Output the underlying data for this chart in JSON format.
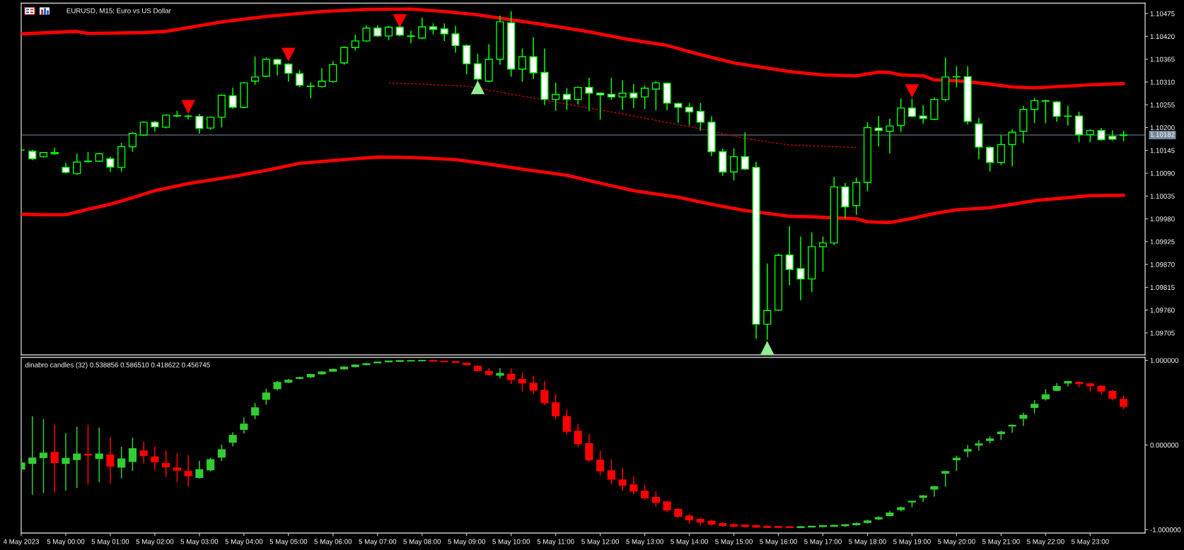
{
  "chart_data": [
    {
      "type": "candlestick",
      "title": "EURUSD, M15: Euro vs US Dollar",
      "color": "#00ff00",
      "x": [
        "2023-05-04T23:00",
        "2023-05-04T23:15",
        "2023-05-04T23:30",
        "2023-05-04T23:45",
        "2023-05-05T00:00",
        "2023-05-05T00:15",
        "2023-05-05T00:30",
        "2023-05-05T00:45",
        "2023-05-05T01:00",
        "2023-05-05T01:15",
        "2023-05-05T01:30",
        "2023-05-05T01:45",
        "2023-05-05T02:00",
        "2023-05-05T02:15",
        "2023-05-05T02:30",
        "2023-05-05T02:45",
        "2023-05-05T03:00",
        "2023-05-05T03:15",
        "2023-05-05T03:30",
        "2023-05-05T03:45",
        "2023-05-05T04:00",
        "2023-05-05T04:15",
        "2023-05-05T04:30",
        "2023-05-05T04:45",
        "2023-05-05T05:00",
        "2023-05-05T05:15",
        "2023-05-05T05:30",
        "2023-05-05T05:45",
        "2023-05-05T06:00",
        "2023-05-05T06:15",
        "2023-05-05T06:30",
        "2023-05-05T06:45",
        "2023-05-05T07:00",
        "2023-05-05T07:15",
        "2023-05-05T07:30",
        "2023-05-05T07:45",
        "2023-05-05T08:00",
        "2023-05-05T08:15",
        "2023-05-05T08:30",
        "2023-05-05T08:45",
        "2023-05-05T09:00",
        "2023-05-05T09:15",
        "2023-05-05T09:30",
        "2023-05-05T09:45",
        "2023-05-05T10:00",
        "2023-05-05T10:15",
        "2023-05-05T10:30",
        "2023-05-05T10:45",
        "2023-05-05T11:00",
        "2023-05-05T11:15",
        "2023-05-05T11:30",
        "2023-05-05T11:45",
        "2023-05-05T12:00",
        "2023-05-05T12:15",
        "2023-05-05T12:30",
        "2023-05-05T12:45",
        "2023-05-05T13:00",
        "2023-05-05T13:15",
        "2023-05-05T13:30",
        "2023-05-05T13:45",
        "2023-05-05T14:00",
        "2023-05-05T14:15",
        "2023-05-05T14:30",
        "2023-05-05T14:45",
        "2023-05-05T15:00",
        "2023-05-05T15:15",
        "2023-05-05T15:30",
        "2023-05-05T15:45",
        "2023-05-05T16:00",
        "2023-05-05T16:15",
        "2023-05-05T16:30",
        "2023-05-05T16:45",
        "2023-05-05T17:00",
        "2023-05-05T17:15",
        "2023-05-05T17:30",
        "2023-05-05T17:45",
        "2023-05-05T18:00",
        "2023-05-05T18:15",
        "2023-05-05T18:30",
        "2023-05-05T18:45",
        "2023-05-05T19:00",
        "2023-05-05T19:15",
        "2023-05-05T19:30",
        "2023-05-05T19:45",
        "2023-05-05T20:00",
        "2023-05-05T20:15",
        "2023-05-05T20:30",
        "2023-05-05T20:45",
        "2023-05-05T21:00",
        "2023-05-05T21:15",
        "2023-05-05T21:30",
        "2023-05-05T21:45",
        "2023-05-05T22:00",
        "2023-05-05T22:15",
        "2023-05-05T22:30",
        "2023-05-05T22:45",
        "2023-05-05T23:00",
        "2023-05-05T23:15",
        "2023-05-05T23:30",
        "2023-05-05T23:45"
      ],
      "ohlc": [
        [
          1.10146,
          1.10148,
          1.10144,
          1.10146
        ],
        [
          1.10143,
          1.10145,
          1.10123,
          1.10125
        ],
        [
          1.1013,
          1.1014,
          1.10129,
          1.1014
        ],
        [
          1.10137,
          1.1015,
          1.10136,
          1.1014
        ],
        [
          1.10104,
          1.10114,
          1.1009,
          1.10092
        ],
        [
          1.10089,
          1.10136,
          1.10087,
          1.10117
        ],
        [
          1.10118,
          1.1014,
          1.10117,
          1.10119
        ],
        [
          1.10119,
          1.10138,
          1.10118,
          1.10137
        ],
        [
          1.10125,
          1.10129,
          1.10094,
          1.10105
        ],
        [
          1.10104,
          1.10162,
          1.10095,
          1.10154
        ],
        [
          1.10154,
          1.10188,
          1.10143,
          1.10186
        ],
        [
          1.10182,
          1.10214,
          1.10181,
          1.10213
        ],
        [
          1.10213,
          1.10215,
          1.10192,
          1.10202
        ],
        [
          1.10201,
          1.10231,
          1.10199,
          1.1023
        ],
        [
          1.10228,
          1.10239,
          1.10226,
          1.10229
        ],
        [
          1.10227,
          1.1023,
          1.10221,
          1.10228
        ],
        [
          1.10227,
          1.10232,
          1.10187,
          1.10198
        ],
        [
          1.10199,
          1.10226,
          1.10196,
          1.10225
        ],
        [
          1.10225,
          1.10279,
          1.10202,
          1.10278
        ],
        [
          1.10277,
          1.10295,
          1.10247,
          1.10249
        ],
        [
          1.10249,
          1.10309,
          1.10248,
          1.10308
        ],
        [
          1.10312,
          1.1037,
          1.10305,
          1.10322
        ],
        [
          1.10324,
          1.10368,
          1.10323,
          1.10365
        ],
        [
          1.10364,
          1.10365,
          1.10327,
          1.10353
        ],
        [
          1.10353,
          1.10354,
          1.10312,
          1.10331
        ],
        [
          1.1033,
          1.10337,
          1.10299,
          1.10302
        ],
        [
          1.103,
          1.10308,
          1.10272,
          1.10299
        ],
        [
          1.10299,
          1.10342,
          1.10298,
          1.10312
        ],
        [
          1.10311,
          1.10359,
          1.10309,
          1.10352
        ],
        [
          1.10356,
          1.10395,
          1.10353,
          1.10393
        ],
        [
          1.10393,
          1.10423,
          1.10387,
          1.10409
        ],
        [
          1.10409,
          1.10445,
          1.10408,
          1.1044
        ],
        [
          1.1044,
          1.10445,
          1.1042,
          1.10421
        ],
        [
          1.10421,
          1.10444,
          1.10412,
          1.10442
        ],
        [
          1.10442,
          1.10444,
          1.10421,
          1.10423
        ],
        [
          1.10421,
          1.10432,
          1.10405,
          1.1042
        ],
        [
          1.10416,
          1.10464,
          1.10415,
          1.10443
        ],
        [
          1.10443,
          1.1045,
          1.10426,
          1.10437
        ],
        [
          1.10438,
          1.1045,
          1.1041,
          1.10426
        ],
        [
          1.10426,
          1.10444,
          1.10382,
          1.10398
        ],
        [
          1.10398,
          1.10399,
          1.1033,
          1.10354
        ],
        [
          1.10354,
          1.10377,
          1.10315,
          1.10317
        ],
        [
          1.10312,
          1.104,
          1.10311,
          1.10365
        ],
        [
          1.10365,
          1.10469,
          1.10353,
          1.10455
        ],
        [
          1.10453,
          1.10479,
          1.10324,
          1.10341
        ],
        [
          1.10341,
          1.10389,
          1.10312,
          1.10371
        ],
        [
          1.10371,
          1.10417,
          1.10318,
          1.10332
        ],
        [
          1.10333,
          1.10389,
          1.10256,
          1.10268
        ],
        [
          1.10268,
          1.10307,
          1.10242,
          1.1028
        ],
        [
          1.1028,
          1.10294,
          1.10244,
          1.10268
        ],
        [
          1.10268,
          1.10298,
          1.10257,
          1.10297
        ],
        [
          1.10297,
          1.10319,
          1.10241,
          1.10283
        ],
        [
          1.10283,
          1.10284,
          1.10221,
          1.10279
        ],
        [
          1.1028,
          1.10319,
          1.10268,
          1.10274
        ],
        [
          1.10274,
          1.10313,
          1.10244,
          1.10283
        ],
        [
          1.10283,
          1.10304,
          1.10248,
          1.10272
        ],
        [
          1.10274,
          1.103,
          1.10246,
          1.10295
        ],
        [
          1.10293,
          1.10311,
          1.10243,
          1.10308
        ],
        [
          1.10307,
          1.10308,
          1.10243,
          1.10259
        ],
        [
          1.10258,
          1.10259,
          1.10213,
          1.10249
        ],
        [
          1.10249,
          1.10258,
          1.10207,
          1.10238
        ],
        [
          1.10239,
          1.10258,
          1.10193,
          1.10213
        ],
        [
          1.10213,
          1.10226,
          1.10133,
          1.10142
        ],
        [
          1.10142,
          1.10148,
          1.10085,
          1.10093
        ],
        [
          1.10093,
          1.10149,
          1.10074,
          1.1013
        ],
        [
          1.1013,
          1.10187,
          1.10099,
          1.101
        ],
        [
          1.10104,
          1.10116,
          1.09692,
          1.09726
        ],
        [
          1.09726,
          1.09871,
          1.0969,
          1.09759
        ],
        [
          1.0976,
          1.09895,
          1.09759,
          1.09892
        ],
        [
          1.09893,
          1.09961,
          1.09821,
          1.09858
        ],
        [
          1.0986,
          1.09936,
          1.09785,
          1.09835
        ],
        [
          1.09835,
          1.09946,
          1.09805,
          1.09913
        ],
        [
          1.09913,
          1.09936,
          1.09854,
          1.09922
        ],
        [
          1.09922,
          1.1008,
          1.09918,
          1.10057
        ],
        [
          1.10057,
          1.10065,
          1.09983,
          1.10009
        ],
        [
          1.10012,
          1.10078,
          1.09991,
          1.10068
        ],
        [
          1.10068,
          1.10212,
          1.10048,
          1.102
        ],
        [
          1.10199,
          1.10227,
          1.10156,
          1.10193
        ],
        [
          1.10191,
          1.1022,
          1.10139,
          1.10204
        ],
        [
          1.10205,
          1.10269,
          1.10191,
          1.10247
        ],
        [
          1.10247,
          1.10268,
          1.10226,
          1.10227
        ],
        [
          1.10228,
          1.10253,
          1.10211,
          1.10222
        ],
        [
          1.1022,
          1.10271,
          1.10219,
          1.10268
        ],
        [
          1.10268,
          1.10368,
          1.10264,
          1.10322
        ],
        [
          1.10322,
          1.10347,
          1.10298,
          1.10323
        ],
        [
          1.10323,
          1.10347,
          1.10209,
          1.10215
        ],
        [
          1.10209,
          1.10222,
          1.10125,
          1.10153
        ],
        [
          1.10152,
          1.10154,
          1.10095,
          1.10116
        ],
        [
          1.10116,
          1.10181,
          1.10111,
          1.10159
        ],
        [
          1.10159,
          1.10195,
          1.10108,
          1.10189
        ],
        [
          1.10191,
          1.10251,
          1.10164,
          1.10244
        ],
        [
          1.10244,
          1.1027,
          1.10212,
          1.10265
        ],
        [
          1.10264,
          1.10266,
          1.10212,
          1.10265
        ],
        [
          1.10262,
          1.10263,
          1.10216,
          1.10227
        ],
        [
          1.10228,
          1.10251,
          1.10206,
          1.10227
        ],
        [
          1.10228,
          1.10237,
          1.10166,
          1.10183
        ],
        [
          1.10183,
          1.10195,
          1.10166,
          1.10193
        ],
        [
          1.10193,
          1.10198,
          1.1017,
          1.10171
        ],
        [
          1.10179,
          1.10192,
          1.1017,
          1.10172
        ],
        [
          1.10181,
          1.10191,
          1.10168,
          1.10182
        ]
      ],
      "colors": [
        "#00ff00",
        "#ffffff",
        "#000000",
        "#000000",
        "#ffffff",
        "#000000",
        "#000000",
        "#000000",
        "#ffffff",
        "#000000",
        "#000000",
        "#000000",
        "#ffffff",
        "#000000",
        "#000000",
        "#000000",
        "#ffffff",
        "#000000",
        "#000000",
        "#ffffff",
        "#000000",
        "#000000",
        "#000000",
        "#ffffff",
        "#ffffff",
        "#ffffff",
        "#ffffff",
        "#000000",
        "#000000",
        "#000000",
        "#000000",
        "#000000",
        "#ffffff",
        "#000000",
        "#ffffff",
        "#ffffff",
        "#000000",
        "#ffffff",
        "#ffffff",
        "#ffffff",
        "#ffffff",
        "#ffffff",
        "#000000",
        "#000000",
        "#ffffff",
        "#000000",
        "#ffffff",
        "#ffffff",
        "#000000",
        "#ffffff",
        "#000000",
        "#ffffff",
        "#ffffff",
        "#ffffff",
        "#000000",
        "#ffffff",
        "#000000",
        "#000000",
        "#ffffff",
        "#ffffff",
        "#ffffff",
        "#ffffff",
        "#ffffff",
        "#ffffff",
        "#000000",
        "#ffffff",
        "#ffffff",
        "#000000",
        "#000000",
        "#ffffff",
        "#ffffff",
        "#000000",
        "#000000",
        "#000000",
        "#ffffff",
        "#000000",
        "#000000",
        "#ffffff",
        "#000000",
        "#000000",
        "#ffffff",
        "#ffffff",
        "#000000",
        "#000000",
        "#000000",
        "#ffffff",
        "#ffffff",
        "#ffffff",
        "#000000",
        "#000000",
        "#000000",
        "#000000",
        "#000000",
        "#ffffff",
        "#ffffff",
        "#ffffff",
        "#000000",
        "#ffffff",
        "#ffffff",
        "#000000"
      ],
      "series": [
        {
          "type": "line",
          "color": "#ff0000",
          "line_style": "solid",
          "x": [
            "2023-05-04T23:00",
            "2023-05-05T00:15",
            "2023-05-05T00:30",
            "2023-05-05T01:45",
            "2023-05-05T02:15",
            "2023-05-05T03:30",
            "2023-05-05T04:30",
            "2023-05-05T05:45",
            "2023-05-05T06:45",
            "2023-05-05T07:45",
            "2023-05-05T08:30",
            "2023-05-05T09:15",
            "2023-05-05T10:00",
            "2023-05-05T11:00",
            "2023-05-05T11:45",
            "2023-05-05T12:30",
            "2023-05-05T13:30",
            "2023-05-05T14:15",
            "2023-05-05T15:00",
            "2023-05-05T16:15",
            "2023-05-05T17:00",
            "2023-05-05T17:45",
            "2023-05-05T18:15",
            "2023-05-05T18:30",
            "2023-05-05T18:45",
            "2023-05-05T19:15",
            "2023-05-05T19:30",
            "2023-05-05T20:00",
            "2023-05-05T20:45",
            "2023-05-05T21:15",
            "2023-05-05T21:45",
            "2023-05-05T22:30",
            "2023-05-05T23:00",
            "2023-05-05T23:45"
          ],
          "values": [
            1.10426,
            1.10432,
            1.10427,
            1.10429,
            1.10432,
            1.10455,
            1.10468,
            1.1048,
            1.10485,
            1.10486,
            1.1048,
            1.10472,
            1.1046,
            1.10444,
            1.10431,
            1.10415,
            1.10398,
            1.10376,
            1.10356,
            1.10335,
            1.10327,
            1.10325,
            1.10334,
            1.10333,
            1.10327,
            1.10325,
            1.10315,
            1.10313,
            1.10305,
            1.10298,
            1.10296,
            1.103,
            1.10303,
            1.10306
          ]
        },
        {
          "type": "line",
          "color": "#ff0000",
          "line_style": "solid",
          "x": [
            "2023-05-04T23:00",
            "2023-05-04T23:30",
            "2023-05-05T00:00",
            "2023-05-05T00:30",
            "2023-05-05T01:00",
            "2023-05-05T01:30",
            "2023-05-05T02:00",
            "2023-05-05T02:45",
            "2023-05-05T03:45",
            "2023-05-05T04:30",
            "2023-05-05T05:15",
            "2023-05-05T06:15",
            "2023-05-05T07:00",
            "2023-05-05T07:45",
            "2023-05-05T08:45",
            "2023-05-05T09:30",
            "2023-05-05T10:15",
            "2023-05-05T11:15",
            "2023-05-05T12:00",
            "2023-05-05T12:45",
            "2023-05-05T13:45",
            "2023-05-05T14:30",
            "2023-05-05T15:15",
            "2023-05-05T16:15",
            "2023-05-05T16:45",
            "2023-05-05T17:45",
            "2023-05-05T18:00",
            "2023-05-05T18:30",
            "2023-05-05T19:00",
            "2023-05-05T19:30",
            "2023-05-05T20:00",
            "2023-05-05T20:45",
            "2023-05-05T21:15",
            "2023-05-05T21:45",
            "2023-05-05T22:30",
            "2023-05-05T23:00",
            "2023-05-05T23:45"
          ],
          "values": [
            1.09991,
            1.0999,
            1.0999,
            1.10003,
            1.10015,
            1.10031,
            1.10048,
            1.10065,
            1.10082,
            1.10097,
            1.10114,
            1.10123,
            1.10129,
            1.10128,
            1.10123,
            1.10112,
            1.101,
            1.10085,
            1.10066,
            1.10048,
            1.10032,
            1.10015,
            1.1,
            1.09986,
            1.09985,
            1.0998,
            1.09973,
            1.09971,
            1.09981,
            1.09993,
            1.10002,
            1.10007,
            1.10015,
            1.10024,
            1.10031,
            1.10036,
            1.10037
          ]
        },
        {
          "type": "line",
          "color": "#d40000",
          "line_style": "dashed",
          "x": [
            "2023-05-05T07:15",
            "2023-05-05T09:00",
            "2023-05-05T10:30",
            "2023-05-05T12:30",
            "2023-05-05T14:15",
            "2023-05-05T15:15",
            "2023-05-05T16:15",
            "2023-05-05T17:45"
          ],
          "values": [
            1.10308,
            1.103,
            1.10271,
            1.10233,
            1.10197,
            1.10174,
            1.10158,
            1.10152
          ]
        },
        {
          "type": "scatter",
          "color": "#ff0000",
          "marker": "triangle",
          "x": [
            "2023-05-05T02:45",
            "2023-05-05T05:00",
            "2023-05-05T07:30",
            "2023-05-05T19:00"
          ],
          "values": [
            1.1025,
            1.10376,
            1.10457,
            1.10288
          ]
        },
        {
          "type": "scatter",
          "color": "#90ee90",
          "marker": "triangle",
          "x": [
            "2023-05-05T09:15",
            "2023-05-05T15:45"
          ],
          "values": [
            1.10297,
            1.09669
          ]
        }
      ],
      "xlim": [
        "2023-05-04T23:00",
        "2023-05-06T00:14"
      ],
      "ylim": [
        1.09652,
        1.105
      ],
      "yticks": [
        1.10475,
        {
          "value": 1.1042,
          "label": "1.10420"
        },
        1.10365,
        {
          "value": 1.1031,
          "label": "1.10310"
        },
        1.10255,
        {
          "value": 1.102,
          "label": "1.10200"
        },
        1.10145,
        {
          "value": 1.1009,
          "label": "1.10090"
        },
        1.10035,
        {
          "value": 1.0998,
          "label": "1.09980"
        },
        1.09925,
        {
          "value": 1.0987,
          "label": "1.09870"
        },
        1.09815,
        {
          "value": 1.0976,
          "label": "1.09760"
        },
        1.09705
      ],
      "tick_labels": "y",
      "ref_lines": [
        {
          "axis": "y",
          "value": 1.10182,
          "label": "1.10182",
          "color": "#778899"
        }
      ]
    },
    {
      "type": "candlestick",
      "title": "dinabro candles (32) 0.538856 0.586510 0.418622 0.456745",
      "x": [
        "2023-05-04T23:00",
        "2023-05-04T23:15",
        "2023-05-04T23:30",
        "2023-05-04T23:45",
        "2023-05-05T00:00",
        "2023-05-05T00:15",
        "2023-05-05T00:30",
        "2023-05-05T00:45",
        "2023-05-05T01:00",
        "2023-05-05T01:15",
        "2023-05-05T01:30",
        "2023-05-05T01:45",
        "2023-05-05T02:00",
        "2023-05-05T02:15",
        "2023-05-05T02:30",
        "2023-05-05T02:45",
        "2023-05-05T03:00",
        "2023-05-05T03:15",
        "2023-05-05T03:30",
        "2023-05-05T03:45",
        "2023-05-05T04:00",
        "2023-05-05T04:15",
        "2023-05-05T04:30",
        "2023-05-05T04:45",
        "2023-05-05T05:00",
        "2023-05-05T05:15",
        "2023-05-05T05:30",
        "2023-05-05T05:45",
        "2023-05-05T06:00",
        "2023-05-05T06:15",
        "2023-05-05T06:30",
        "2023-05-05T06:45",
        "2023-05-05T07:00",
        "2023-05-05T07:15",
        "2023-05-05T07:30",
        "2023-05-05T07:45",
        "2023-05-05T08:00",
        "2023-05-05T08:15",
        "2023-05-05T08:30",
        "2023-05-05T08:45",
        "2023-05-05T09:00",
        "2023-05-05T09:15",
        "2023-05-05T09:30",
        "2023-05-05T09:45",
        "2023-05-05T10:00",
        "2023-05-05T10:15",
        "2023-05-05T10:30",
        "2023-05-05T10:45",
        "2023-05-05T11:00",
        "2023-05-05T11:15",
        "2023-05-05T11:30",
        "2023-05-05T11:45",
        "2023-05-05T12:00",
        "2023-05-05T12:15",
        "2023-05-05T12:30",
        "2023-05-05T12:45",
        "2023-05-05T13:00",
        "2023-05-05T13:15",
        "2023-05-05T13:30",
        "2023-05-05T13:45",
        "2023-05-05T14:00",
        "2023-05-05T14:15",
        "2023-05-05T14:30",
        "2023-05-05T14:45",
        "2023-05-05T15:00",
        "2023-05-05T15:15",
        "2023-05-05T15:30",
        "2023-05-05T15:45",
        "2023-05-05T16:00",
        "2023-05-05T16:15",
        "2023-05-05T16:30",
        "2023-05-05T16:45",
        "2023-05-05T17:00",
        "2023-05-05T17:15",
        "2023-05-05T17:30",
        "2023-05-05T17:45",
        "2023-05-05T18:00",
        "2023-05-05T18:15",
        "2023-05-05T18:30",
        "2023-05-05T18:45",
        "2023-05-05T19:00",
        "2023-05-05T19:15",
        "2023-05-05T19:30",
        "2023-05-05T19:45",
        "2023-05-05T20:00",
        "2023-05-05T20:15",
        "2023-05-05T20:30",
        "2023-05-05T20:45",
        "2023-05-05T21:00",
        "2023-05-05T21:15",
        "2023-05-05T21:30",
        "2023-05-05T21:45",
        "2023-05-05T22:00",
        "2023-05-05T22:15",
        "2023-05-05T22:30",
        "2023-05-05T22:45",
        "2023-05-05T23:00",
        "2023-05-05T23:15",
        "2023-05-05T23:30",
        "2023-05-05T23:45"
      ],
      "ohlc": [
        [
          -0.284,
          -0.204,
          -0.293,
          -0.213
        ],
        [
          -0.217,
          0.341,
          -0.588,
          -0.155
        ],
        [
          -0.15,
          0.305,
          -0.566,
          -0.097
        ],
        [
          -0.088,
          0.238,
          -0.557,
          -0.208
        ],
        [
          -0.217,
          0.14,
          -0.539,
          -0.159
        ],
        [
          -0.173,
          0.216,
          -0.508,
          -0.106
        ],
        [
          -0.11,
          0.238,
          -0.467,
          -0.119
        ],
        [
          -0.159,
          0.207,
          -0.441,
          -0.106
        ],
        [
          -0.119,
          0.095,
          -0.458,
          -0.249
        ],
        [
          -0.262,
          -0.021,
          -0.396,
          -0.164
        ],
        [
          -0.195,
          0.086,
          -0.307,
          -0.043
        ],
        [
          -0.07,
          0.037,
          -0.218,
          -0.124
        ],
        [
          -0.142,
          -0.017,
          -0.298,
          -0.2
        ],
        [
          -0.218,
          -0.061,
          -0.378,
          -0.258
        ],
        [
          -0.271,
          -0.097,
          -0.441,
          -0.298
        ],
        [
          -0.311,
          -0.119,
          -0.49,
          -0.365
        ],
        [
          -0.383,
          -0.186,
          -0.396,
          -0.293
        ],
        [
          -0.293,
          -0.15,
          -0.311,
          -0.173
        ],
        [
          -0.142,
          0.006,
          -0.191,
          -0.057
        ],
        [
          0.033,
          0.153,
          -0.017,
          0.113
        ],
        [
          0.184,
          0.327,
          0.135,
          0.247
        ],
        [
          0.354,
          0.497,
          0.305,
          0.439
        ],
        [
          0.539,
          0.666,
          0.475,
          0.613
        ],
        [
          0.666,
          0.756,
          0.644,
          0.738
        ],
        [
          0.742,
          0.782,
          0.733,
          0.765
        ],
        [
          0.787,
          0.805,
          0.774,
          0.796
        ],
        [
          0.805,
          0.841,
          0.791,
          0.832
        ],
        [
          0.841,
          0.872,
          0.832,
          0.863
        ],
        [
          0.872,
          0.903,
          0.863,
          0.894
        ],
        [
          0.899,
          0.93,
          0.89,
          0.921
        ],
        [
          0.925,
          0.952,
          0.916,
          0.943
        ],
        [
          0.948,
          0.97,
          0.939,
          0.961
        ],
        [
          0.97,
          0.983,
          0.966,
          0.979
        ],
        [
          0.983,
          0.997,
          0.979,
          0.992
        ],
        [
          0.988,
          0.999,
          0.983,
          0.997
        ],
        [
          0.992,
          0.999,
          0.99,
          0.997
        ],
        [
          0.994,
          0.999,
          0.992,
          0.998
        ],
        [
          0.998,
          0.999,
          0.988,
          0.99
        ],
        [
          0.988,
          0.99,
          0.981,
          0.983
        ],
        [
          0.983,
          0.985,
          0.972,
          0.975
        ],
        [
          0.966,
          0.97,
          0.939,
          0.948
        ],
        [
          0.93,
          0.943,
          0.868,
          0.881
        ],
        [
          0.868,
          0.908,
          0.823,
          0.836
        ],
        [
          0.823,
          0.908,
          0.787,
          0.845
        ],
        [
          0.836,
          0.908,
          0.72,
          0.774
        ],
        [
          0.774,
          0.854,
          0.631,
          0.733
        ],
        [
          0.729,
          0.818,
          0.6,
          0.649
        ],
        [
          0.644,
          0.756,
          0.47,
          0.501
        ],
        [
          0.497,
          0.6,
          0.309,
          0.345
        ],
        [
          0.336,
          0.417,
          0.126,
          0.162
        ],
        [
          0.162,
          0.251,
          -0.025,
          0.015
        ],
        [
          0.015,
          0.131,
          -0.2,
          -0.177
        ],
        [
          -0.179,
          -0.067,
          -0.359,
          -0.305
        ],
        [
          -0.305,
          -0.17,
          -0.462,
          -0.404
        ],
        [
          -0.413,
          -0.269,
          -0.538,
          -0.475
        ],
        [
          -0.471,
          -0.372,
          -0.583,
          -0.543
        ],
        [
          -0.547,
          -0.471,
          -0.65,
          -0.623
        ],
        [
          -0.619,
          -0.547,
          -0.726,
          -0.677
        ],
        [
          -0.673,
          -0.664,
          -0.794,
          -0.767
        ],
        [
          -0.762,
          -0.744,
          -0.861,
          -0.843
        ],
        [
          -0.839,
          -0.816,
          -0.928,
          -0.883
        ],
        [
          -0.879,
          -0.861,
          -0.951,
          -0.91
        ],
        [
          -0.901,
          -0.883,
          -0.955,
          -0.933
        ],
        [
          -0.928,
          -0.91,
          -0.969,
          -0.951
        ],
        [
          -0.942,
          -0.928,
          -0.973,
          -0.96
        ],
        [
          -0.946,
          -0.937,
          -0.973,
          -0.964
        ],
        [
          -0.951,
          -0.946,
          -0.978,
          -0.969
        ],
        [
          -0.96,
          -0.955,
          -0.978,
          -0.973
        ],
        [
          -0.964,
          -0.96,
          -0.978,
          -0.973
        ],
        [
          -0.966,
          -0.962,
          -0.98,
          -0.975
        ],
        [
          -0.975,
          -0.962,
          -0.978,
          -0.966
        ],
        [
          -0.969,
          -0.955,
          -0.973,
          -0.96
        ],
        [
          -0.964,
          -0.946,
          -0.969,
          -0.951
        ],
        [
          -0.962,
          -0.944,
          -0.966,
          -0.95
        ],
        [
          -0.955,
          -0.933,
          -0.964,
          -0.942
        ],
        [
          -0.942,
          -0.915,
          -0.951,
          -0.928
        ],
        [
          -0.915,
          -0.879,
          -0.928,
          -0.897
        ],
        [
          -0.874,
          -0.839,
          -0.888,
          -0.857
        ],
        [
          -0.834,
          -0.78,
          -0.843,
          -0.803
        ],
        [
          -0.762,
          -0.726,
          -0.785,
          -0.74
        ],
        [
          -0.673,
          -0.66,
          -0.735,
          -0.664
        ],
        [
          -0.619,
          -0.592,
          -0.673,
          -0.601
        ],
        [
          -0.52,
          -0.484,
          -0.61,
          -0.493
        ],
        [
          -0.332,
          -0.305,
          -0.493,
          -0.314
        ],
        [
          -0.175,
          -0.126,
          -0.309,
          -0.157
        ],
        [
          -0.072,
          0.0,
          -0.143,
          -0.054
        ],
        [
          0.0,
          0.058,
          -0.067,
          0.013
        ],
        [
          0.054,
          0.103,
          0.018,
          0.072
        ],
        [
          0.135,
          0.17,
          0.058,
          0.152
        ],
        [
          0.224,
          0.242,
          0.143,
          0.233
        ],
        [
          0.314,
          0.381,
          0.224,
          0.35
        ],
        [
          0.444,
          0.529,
          0.372,
          0.48
        ],
        [
          0.547,
          0.659,
          0.525,
          0.592
        ],
        [
          0.646,
          0.731,
          0.637,
          0.691
        ],
        [
          0.731,
          0.758,
          0.691,
          0.749
        ],
        [
          0.74,
          0.744,
          0.682,
          0.726
        ],
        [
          0.722,
          0.724,
          0.632,
          0.7
        ],
        [
          0.695,
          0.704,
          0.592,
          0.637
        ],
        [
          0.632,
          0.65,
          0.525,
          0.552
        ],
        [
          0.538856,
          0.58651,
          0.418622,
          0.456745
        ]
      ],
      "colors": [
        "#32cd32",
        "#32cd32",
        "#32cd32",
        "#ff0000",
        "#32cd32",
        "#32cd32",
        "#ff0000",
        "#32cd32",
        "#ff0000",
        "#32cd32",
        "#32cd32",
        "#ff0000",
        "#ff0000",
        "#ff0000",
        "#ff0000",
        "#ff0000",
        "#32cd32",
        "#32cd32",
        "#32cd32",
        "#32cd32",
        "#32cd32",
        "#32cd32",
        "#32cd32",
        "#32cd32",
        "#32cd32",
        "#32cd32",
        "#32cd32",
        "#32cd32",
        "#32cd32",
        "#32cd32",
        "#32cd32",
        "#32cd32",
        "#32cd32",
        "#32cd32",
        "#32cd32",
        "#32cd32",
        "#32cd32",
        "#ff0000",
        "#ff0000",
        "#ff0000",
        "#ff0000",
        "#ff0000",
        "#ff0000",
        "#32cd32",
        "#ff0000",
        "#ff0000",
        "#ff0000",
        "#ff0000",
        "#ff0000",
        "#ff0000",
        "#ff0000",
        "#ff0000",
        "#ff0000",
        "#ff0000",
        "#ff0000",
        "#ff0000",
        "#ff0000",
        "#ff0000",
        "#ff0000",
        "#ff0000",
        "#ff0000",
        "#ff0000",
        "#ff0000",
        "#ff0000",
        "#ff0000",
        "#ff0000",
        "#ff0000",
        "#ff0000",
        "#ff0000",
        "#ff0000",
        "#32cd32",
        "#32cd32",
        "#32cd32",
        "#32cd32",
        "#32cd32",
        "#32cd32",
        "#32cd32",
        "#32cd32",
        "#32cd32",
        "#32cd32",
        "#32cd32",
        "#32cd32",
        "#32cd32",
        "#32cd32",
        "#32cd32",
        "#32cd32",
        "#32cd32",
        "#32cd32",
        "#32cd32",
        "#32cd32",
        "#32cd32",
        "#32cd32",
        "#32cd32",
        "#32cd32",
        "#32cd32",
        "#ff0000",
        "#ff0000",
        "#ff0000",
        "#ff0000",
        "#ff0000"
      ],
      "xlim": [
        "2023-05-04T23:00",
        "2023-05-06T00:14"
      ],
      "ylim": [
        -1.04,
        1.035
      ],
      "xticks": [
        {
          "value": "2023-05-04T23:00",
          "label": "4 May 2023"
        },
        {
          "value": "2023-05-05T00:00",
          "label": "5 May 00:00"
        },
        {
          "value": "2023-05-05T01:00",
          "label": "5 May 01:00"
        },
        {
          "value": "2023-05-05T02:00",
          "label": "5 May 02:00"
        },
        {
          "value": "2023-05-05T03:00",
          "label": "5 May 03:00"
        },
        {
          "value": "2023-05-05T04:00",
          "label": "5 May 04:00"
        },
        {
          "value": "2023-05-05T05:00",
          "label": "5 May 05:00"
        },
        {
          "value": "2023-05-05T06:00",
          "label": "5 May 06:00"
        },
        {
          "value": "2023-05-05T07:00",
          "label": "5 May 07:00"
        },
        {
          "value": "2023-05-05T08:00",
          "label": "5 May 08:00"
        },
        {
          "value": "2023-05-05T09:00",
          "label": "5 May 09:00"
        },
        {
          "value": "2023-05-05T10:00",
          "label": "5 May 10:00"
        },
        {
          "value": "2023-05-05T11:00",
          "label": "5 May 11:00"
        },
        {
          "value": "2023-05-05T12:00",
          "label": "5 May 12:00"
        },
        {
          "value": "2023-05-05T13:00",
          "label": "5 May 13:00"
        },
        {
          "value": "2023-05-05T14:00",
          "label": "5 May 14:00"
        },
        {
          "value": "2023-05-05T15:00",
          "label": "5 May 15:00"
        },
        {
          "value": "2023-05-05T16:00",
          "label": "5 May 16:00"
        },
        {
          "value": "2023-05-05T17:00",
          "label": "5 May 17:00"
        },
        {
          "value": "2023-05-05T18:00",
          "label": "5 May 18:00"
        },
        {
          "value": "2023-05-05T19:00",
          "label": "5 May 19:00"
        },
        {
          "value": "2023-05-05T20:00",
          "label": "5 May 20:00"
        },
        {
          "value": "2023-05-05T21:00",
          "label": "5 May 21:00"
        },
        {
          "value": "2023-05-05T22:00",
          "label": "5 May 22:00"
        },
        {
          "value": "2023-05-05T23:00",
          "label": "5 May 23:00"
        }
      ],
      "yticks": [
        {
          "value": 1,
          "label": "1.000000"
        },
        {
          "value": 0,
          "label": "0.000000"
        },
        {
          "value": -1,
          "label": "-1.000000"
        }
      ]
    }
  ]
}
